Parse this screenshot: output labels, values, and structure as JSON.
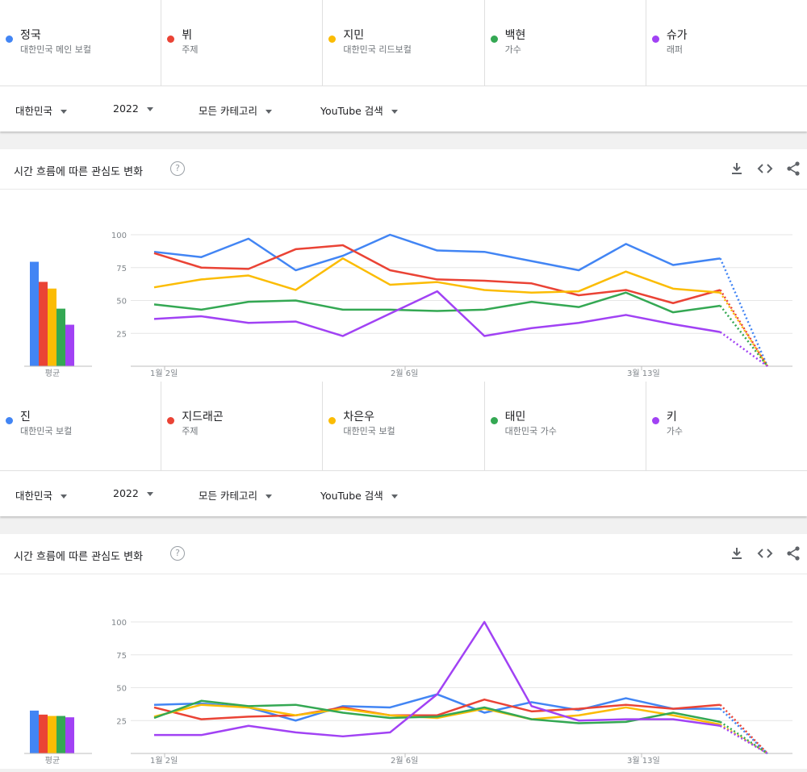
{
  "panels": [
    {
      "terms": [
        {
          "name": "정국",
          "sub": "대한민국 메인 보컬",
          "color": "#4285f4"
        },
        {
          "name": "뷔",
          "sub": "주제",
          "color": "#ea4335"
        },
        {
          "name": "지민",
          "sub": "대한민국 리드보컬",
          "color": "#fbbc04"
        },
        {
          "name": "백현",
          "sub": "가수",
          "color": "#34a853"
        },
        {
          "name": "슈가",
          "sub": "래퍼",
          "color": "#a142f4"
        }
      ],
      "filters": {
        "region": "대한민국",
        "year": "2022",
        "category": "모든 카테고리",
        "source": "YouTube 검색"
      },
      "card_title": "시간 흐름에 따른 관심도 변화",
      "help_icon": "?",
      "avg_label": "평균"
    },
    {
      "terms": [
        {
          "name": "진",
          "sub": "대한민국 보컬",
          "color": "#4285f4"
        },
        {
          "name": "지드래곤",
          "sub": "주제",
          "color": "#ea4335"
        },
        {
          "name": "차은우",
          "sub": "대한민국 보컬",
          "color": "#fbbc04"
        },
        {
          "name": "태민",
          "sub": "대한민국 가수",
          "color": "#34a853"
        },
        {
          "name": "키",
          "sub": "가수",
          "color": "#a142f4"
        }
      ],
      "filters": {
        "region": "대한민국",
        "year": "2022",
        "category": "모든 카테고리",
        "source": "YouTube 검색"
      },
      "card_title": "시간 흐름에 따른 관심도 변화",
      "help_icon": "?",
      "avg_label": "평균"
    }
  ],
  "icons": [
    "download-icon",
    "embed-code-icon",
    "share-icon",
    "help-icon",
    "chevron-down-icon"
  ],
  "chart_data": [
    {
      "type": "line",
      "title": "시간 흐름에 따른 관심도 변화",
      "x_ticks": [
        "1월 2일",
        "2월 6일",
        "3월 13일"
      ],
      "ylim": [
        0,
        100
      ],
      "y_ticks": [
        25,
        50,
        75,
        100
      ],
      "grid": true,
      "partial_last_point": true,
      "series": [
        {
          "name": "정국",
          "color": "#4285f4",
          "average": 78,
          "values": [
            87,
            83,
            97,
            73,
            84,
            100,
            88,
            87,
            80,
            73,
            93,
            77,
            82,
            0
          ]
        },
        {
          "name": "뷔",
          "color": "#ea4335",
          "average": 63,
          "values": [
            86,
            75,
            74,
            89,
            92,
            73,
            66,
            65,
            63,
            54,
            58,
            48,
            58,
            0
          ]
        },
        {
          "name": "지민",
          "color": "#fbbc04",
          "average": 58,
          "values": [
            60,
            66,
            69,
            58,
            82,
            62,
            64,
            58,
            56,
            57,
            72,
            59,
            56,
            0
          ]
        },
        {
          "name": "백현",
          "color": "#34a853",
          "average": 43,
          "values": [
            47,
            43,
            49,
            50,
            43,
            43,
            42,
            43,
            49,
            45,
            56,
            41,
            46,
            0
          ]
        },
        {
          "name": "슈가",
          "color": "#a142f4",
          "average": 31,
          "values": [
            36,
            38,
            33,
            34,
            23,
            40,
            57,
            23,
            29,
            33,
            39,
            32,
            26,
            0
          ]
        }
      ]
    },
    {
      "type": "line",
      "title": "시간 흐름에 따른 관심도 변화",
      "x_ticks": [
        "1월 2일",
        "2월 6일",
        "3월 13일"
      ],
      "ylim": [
        0,
        100
      ],
      "y_ticks": [
        25,
        50,
        75,
        100
      ],
      "grid": true,
      "partial_last_point": true,
      "series": [
        {
          "name": "진",
          "color": "#4285f4",
          "average": 32,
          "values": [
            37,
            38,
            35,
            25,
            36,
            35,
            45,
            31,
            39,
            33,
            42,
            34,
            34,
            0
          ]
        },
        {
          "name": "지드래곤",
          "color": "#ea4335",
          "average": 29,
          "values": [
            35,
            26,
            28,
            29,
            35,
            29,
            29,
            41,
            32,
            34,
            37,
            34,
            37,
            0
          ]
        },
        {
          "name": "차은우",
          "color": "#fbbc04",
          "average": 28,
          "values": [
            28,
            37,
            35,
            29,
            34,
            29,
            27,
            34,
            26,
            29,
            35,
            29,
            22,
            0
          ]
        },
        {
          "name": "태민",
          "color": "#34a853",
          "average": 28,
          "values": [
            27,
            40,
            36,
            37,
            31,
            27,
            28,
            35,
            26,
            23,
            24,
            31,
            24,
            0
          ]
        },
        {
          "name": "키",
          "color": "#a142f4",
          "average": 27,
          "values": [
            14,
            14,
            21,
            16,
            13,
            16,
            45,
            100,
            36,
            25,
            26,
            26,
            21,
            0
          ]
        }
      ]
    }
  ]
}
